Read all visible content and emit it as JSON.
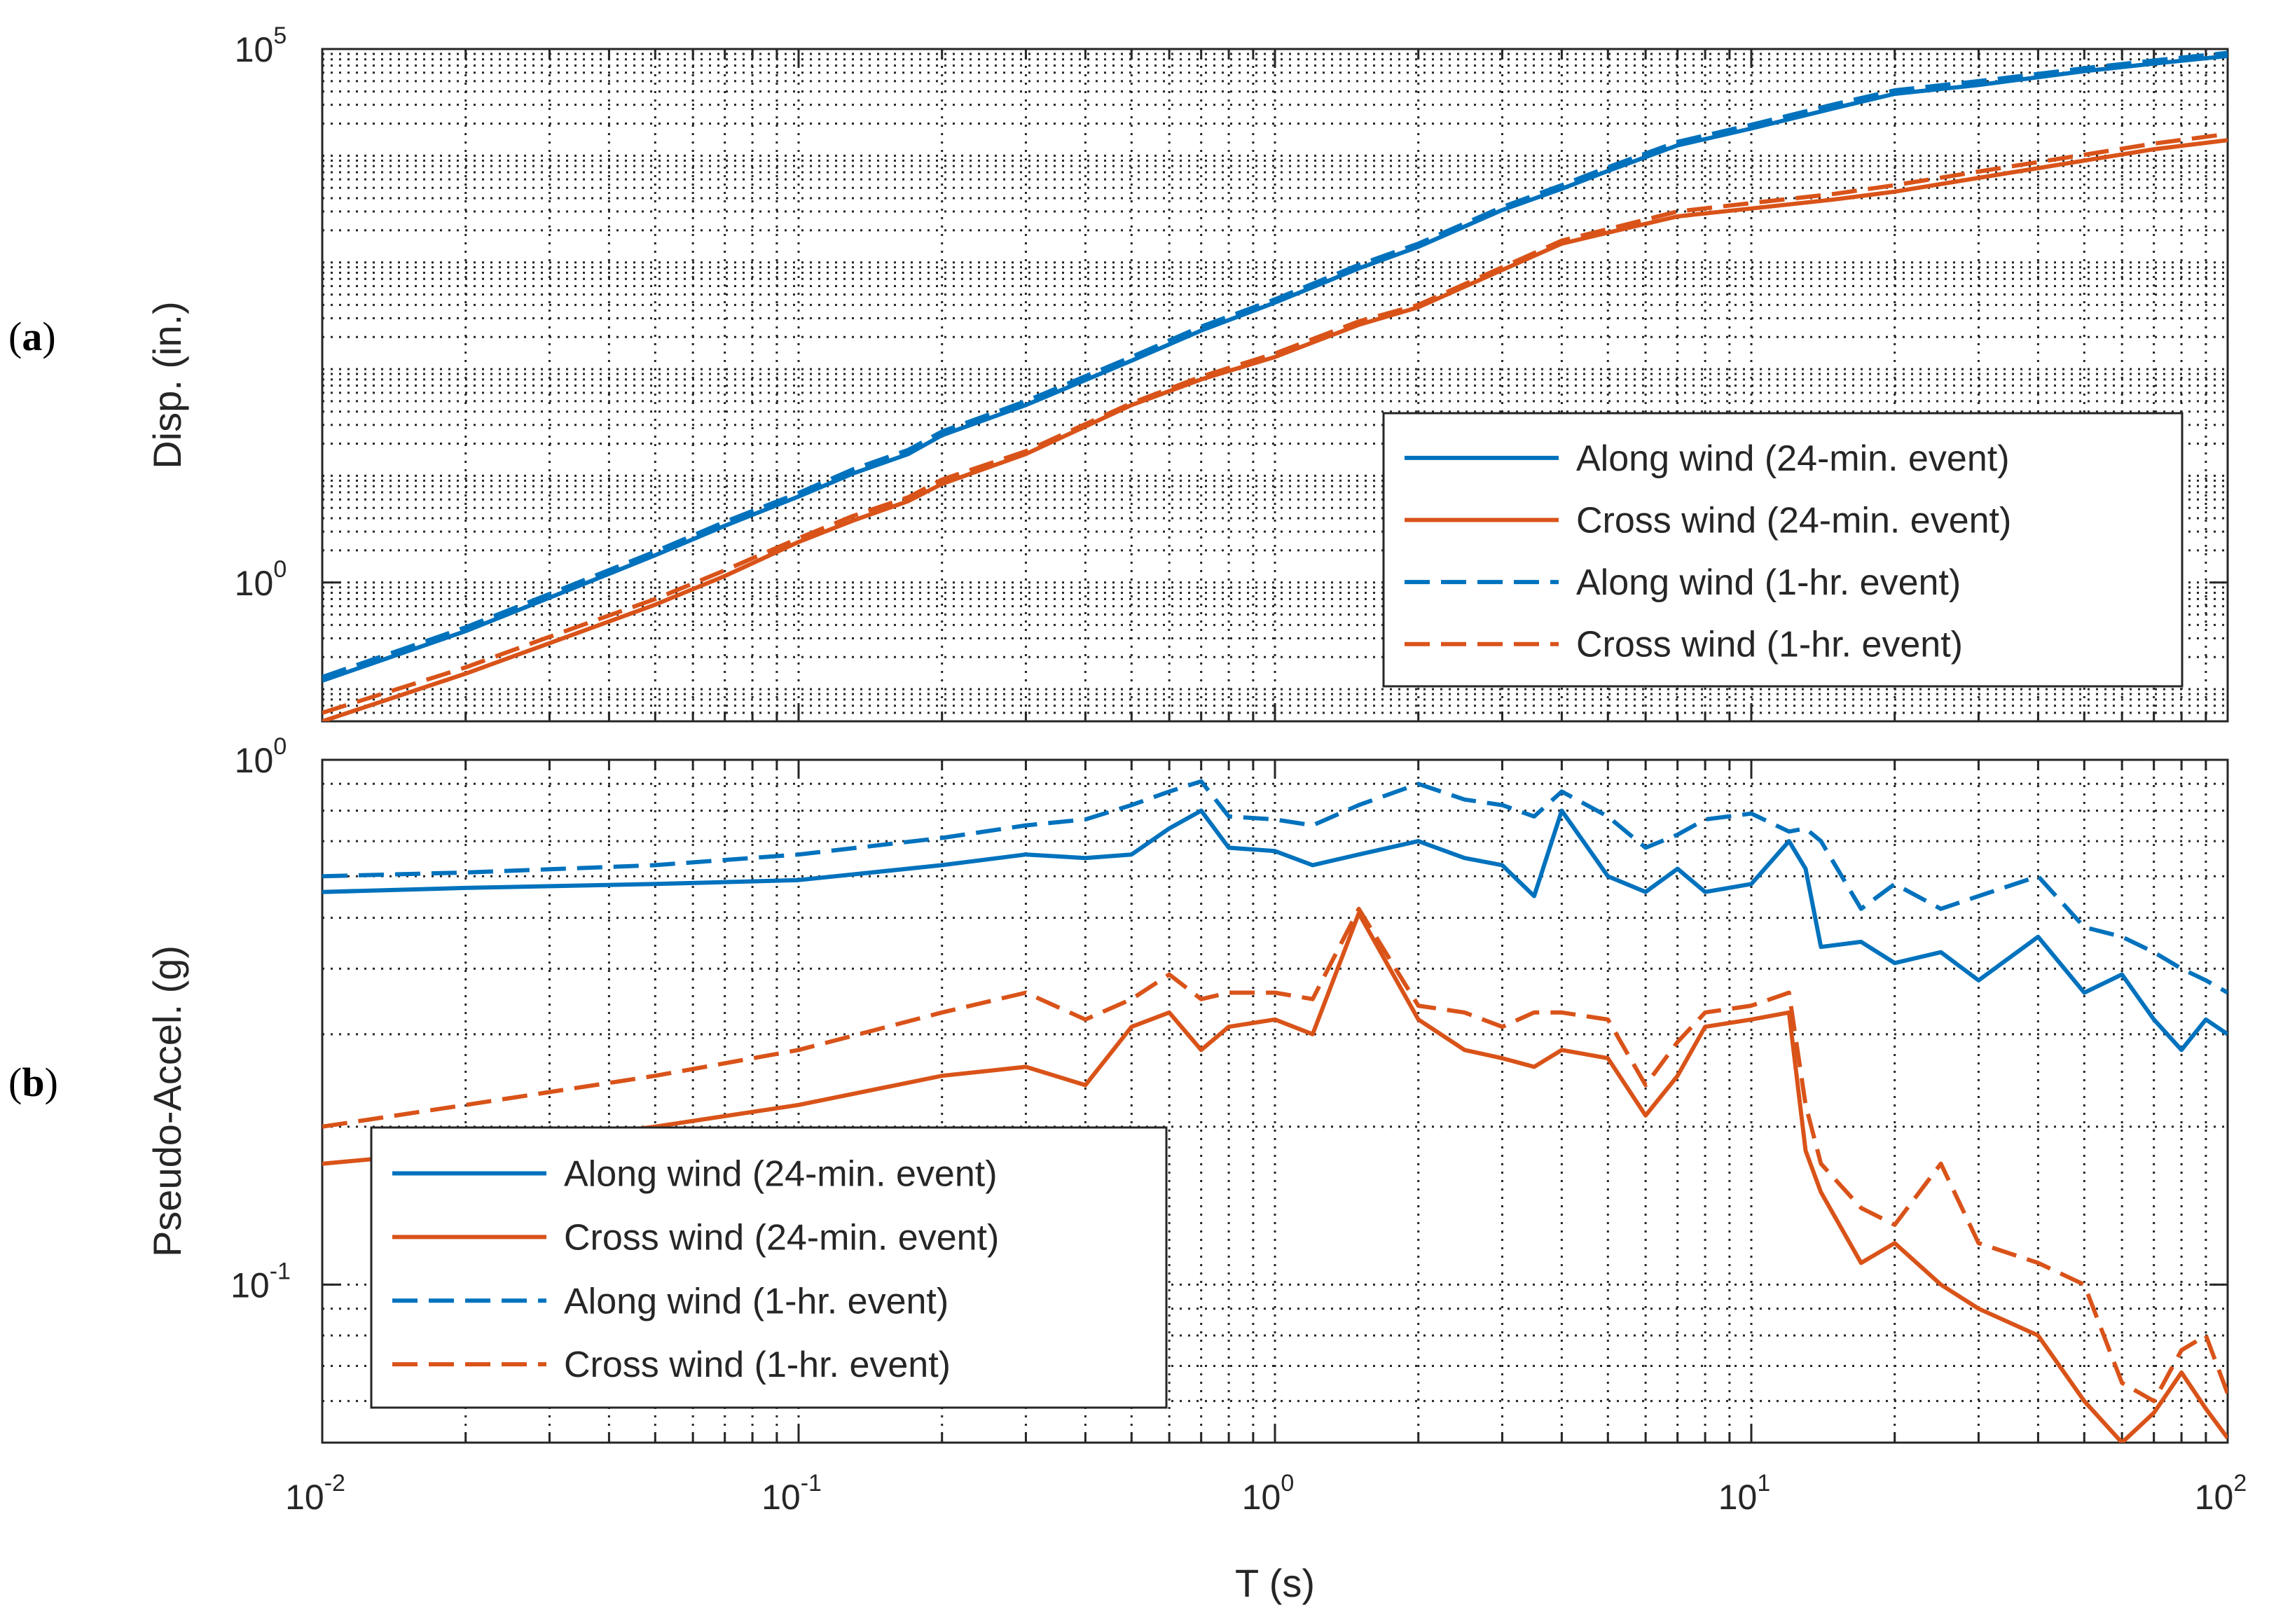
{
  "chart_data": [
    {
      "panel_label": "a",
      "type": "line",
      "xscale": "log",
      "yscale": "log",
      "xlim": [
        0.01,
        100
      ],
      "ylim": [
        0.05,
        100000
      ],
      "xticks": [
        {
          "base": "10",
          "exp": "-2"
        },
        {
          "base": "10",
          "exp": "-1"
        },
        {
          "base": "10",
          "exp": "0"
        },
        {
          "base": "10",
          "exp": "1"
        },
        {
          "base": "10",
          "exp": "2"
        }
      ],
      "xtick_values": [
        0.01,
        0.1,
        1,
        10,
        100
      ],
      "yticks": [
        {
          "base": "10",
          "exp": "0"
        },
        {
          "base": "10",
          "exp": "5"
        }
      ],
      "ytick_values": [
        1,
        100000
      ],
      "ylabel": "Disp. (in.)",
      "xlabel": "",
      "grid": true,
      "legend_location": "lower-right",
      "series": [
        {
          "name": "Along wind (24-min. event)",
          "color": "#0072BD",
          "style": "solid",
          "x": [
            0.01,
            0.02,
            0.03,
            0.05,
            0.07,
            0.1,
            0.13,
            0.17,
            0.2,
            0.3,
            0.5,
            0.7,
            1,
            1.5,
            2,
            3,
            4,
            5,
            7,
            10,
            15,
            20,
            30,
            50,
            70,
            100
          ],
          "y": [
            0.12,
            0.35,
            0.72,
            1.8,
            3.4,
            6.4,
            10.5,
            16,
            24,
            46,
            120,
            230,
            420,
            880,
            1400,
            3100,
            4900,
            7200,
            12500,
            18000,
            28000,
            38000,
            46000,
            62000,
            73000,
            86000
          ]
        },
        {
          "name": "Cross wind (24-min. event)",
          "color": "#D95319",
          "style": "solid",
          "x": [
            0.01,
            0.02,
            0.03,
            0.05,
            0.07,
            0.1,
            0.13,
            0.17,
            0.2,
            0.3,
            0.5,
            0.7,
            1,
            1.5,
            2,
            3,
            4,
            5,
            7,
            10,
            15,
            20,
            30,
            50,
            70,
            100
          ],
          "y": [
            0.05,
            0.14,
            0.27,
            0.62,
            1.15,
            2.4,
            3.8,
            5.8,
            8.4,
            16,
            46,
            80,
            130,
            260,
            380,
            850,
            1500,
            1900,
            2700,
            3200,
            3900,
            4600,
            6200,
            9000,
            11500,
            14000
          ]
        },
        {
          "name": "Along wind (1-hr. event)",
          "color": "#0072BD",
          "style": "dashed",
          "x": [
            0.01,
            0.02,
            0.03,
            0.05,
            0.07,
            0.1,
            0.13,
            0.17,
            0.2,
            0.3,
            0.5,
            0.7,
            1,
            1.5,
            2,
            3,
            4,
            5,
            7,
            10,
            15,
            20,
            30,
            50,
            70,
            100
          ],
          "y": [
            0.13,
            0.38,
            0.78,
            1.95,
            3.7,
            6.9,
            11.5,
            17.5,
            26,
            50,
            130,
            250,
            450,
            950,
            1500,
            3300,
            5300,
            7800,
            13500,
            19500,
            30500,
            41000,
            50000,
            66000,
            78000,
            92000
          ]
        },
        {
          "name": "Cross wind (1-hr. event)",
          "color": "#D95319",
          "style": "dashed",
          "x": [
            0.01,
            0.02,
            0.03,
            0.05,
            0.07,
            0.1,
            0.13,
            0.17,
            0.2,
            0.3,
            0.5,
            0.7,
            1,
            1.5,
            2,
            3,
            4,
            5,
            7,
            10,
            15,
            20,
            30,
            50,
            70,
            100
          ],
          "y": [
            0.06,
            0.16,
            0.31,
            0.7,
            1.3,
            2.6,
            4.2,
            6.3,
            9.2,
            17,
            48,
            85,
            140,
            280,
            400,
            900,
            1600,
            2050,
            3000,
            3600,
            4400,
            5300,
            7100,
            10200,
            13000,
            16000
          ]
        }
      ]
    },
    {
      "panel_label": "b",
      "type": "line",
      "xscale": "log",
      "yscale": "log",
      "xlim": [
        0.01,
        100
      ],
      "ylim": [
        0.05,
        1
      ],
      "xticks": [
        {
          "base": "10",
          "exp": "-2"
        },
        {
          "base": "10",
          "exp": "-1"
        },
        {
          "base": "10",
          "exp": "0"
        },
        {
          "base": "10",
          "exp": "1"
        },
        {
          "base": "10",
          "exp": "2"
        }
      ],
      "xtick_values": [
        0.01,
        0.1,
        1,
        10,
        100
      ],
      "yticks": [
        {
          "base": "10",
          "exp": "-1"
        },
        {
          "base": "10",
          "exp": "0"
        }
      ],
      "ytick_values": [
        0.1,
        1
      ],
      "ylabel": "Pseudo-Accel. (g)",
      "xlabel": "T (s)",
      "grid": true,
      "legend_location": "lower-left",
      "series": [
        {
          "name": "Along wind (24-min. event)",
          "color": "#0072BD",
          "style": "solid",
          "x": [
            0.01,
            0.02,
            0.05,
            0.1,
            0.2,
            0.3,
            0.4,
            0.5,
            0.6,
            0.7,
            0.8,
            1,
            1.2,
            1.5,
            2,
            2.5,
            3,
            3.5,
            4,
            5,
            6,
            7,
            8,
            10,
            12,
            13,
            14,
            17,
            20,
            25,
            30,
            40,
            50,
            60,
            70,
            80,
            90,
            100
          ],
          "y": [
            0.56,
            0.57,
            0.58,
            0.59,
            0.63,
            0.66,
            0.65,
            0.66,
            0.74,
            0.8,
            0.68,
            0.67,
            0.63,
            0.66,
            0.7,
            0.65,
            0.63,
            0.55,
            0.8,
            0.6,
            0.56,
            0.62,
            0.56,
            0.58,
            0.7,
            0.62,
            0.44,
            0.45,
            0.41,
            0.43,
            0.38,
            0.46,
            0.36,
            0.39,
            0.32,
            0.28,
            0.32,
            0.3
          ]
        },
        {
          "name": "Cross wind (24-min. event)",
          "color": "#D95319",
          "style": "solid",
          "x": [
            0.01,
            0.02,
            0.05,
            0.1,
            0.2,
            0.3,
            0.4,
            0.5,
            0.6,
            0.7,
            0.8,
            1,
            1.2,
            1.5,
            2,
            2.5,
            3,
            3.5,
            4,
            5,
            6,
            7,
            8,
            10,
            12,
            13,
            14,
            17,
            20,
            25,
            30,
            40,
            50,
            60,
            70,
            80,
            90,
            100
          ],
          "y": [
            0.17,
            0.18,
            0.2,
            0.22,
            0.25,
            0.26,
            0.24,
            0.31,
            0.33,
            0.28,
            0.31,
            0.32,
            0.3,
            0.51,
            0.32,
            0.28,
            0.27,
            0.26,
            0.28,
            0.27,
            0.21,
            0.25,
            0.31,
            0.32,
            0.33,
            0.18,
            0.15,
            0.11,
            0.12,
            0.1,
            0.09,
            0.08,
            0.06,
            0.05,
            0.057,
            0.068,
            0.058,
            0.051
          ]
        },
        {
          "name": "Along wind (1-hr. event)",
          "color": "#0072BD",
          "style": "dashed",
          "x": [
            0.01,
            0.02,
            0.05,
            0.1,
            0.2,
            0.3,
            0.4,
            0.5,
            0.6,
            0.7,
            0.8,
            1,
            1.2,
            1.5,
            2,
            2.5,
            3,
            3.5,
            4,
            5,
            6,
            7,
            8,
            10,
            12,
            13,
            14,
            17,
            20,
            25,
            30,
            40,
            50,
            60,
            70,
            80,
            90,
            100
          ],
          "y": [
            0.6,
            0.61,
            0.63,
            0.66,
            0.71,
            0.75,
            0.77,
            0.82,
            0.87,
            0.91,
            0.78,
            0.77,
            0.75,
            0.82,
            0.9,
            0.84,
            0.82,
            0.78,
            0.87,
            0.78,
            0.68,
            0.72,
            0.77,
            0.79,
            0.73,
            0.74,
            0.7,
            0.52,
            0.58,
            0.52,
            0.55,
            0.6,
            0.48,
            0.46,
            0.43,
            0.4,
            0.38,
            0.36
          ]
        },
        {
          "name": "Cross wind (1-hr. event)",
          "color": "#D95319",
          "style": "dashed",
          "x": [
            0.01,
            0.02,
            0.05,
            0.1,
            0.2,
            0.3,
            0.4,
            0.5,
            0.6,
            0.7,
            0.8,
            1,
            1.2,
            1.5,
            2,
            2.5,
            3,
            3.5,
            4,
            5,
            6,
            7,
            8,
            10,
            12,
            13,
            14,
            17,
            20,
            25,
            30,
            40,
            50,
            60,
            70,
            80,
            90,
            100
          ],
          "y": [
            0.2,
            0.22,
            0.25,
            0.28,
            0.33,
            0.36,
            0.32,
            0.35,
            0.39,
            0.35,
            0.36,
            0.36,
            0.35,
            0.52,
            0.34,
            0.33,
            0.31,
            0.33,
            0.33,
            0.32,
            0.24,
            0.29,
            0.33,
            0.34,
            0.36,
            0.22,
            0.17,
            0.14,
            0.13,
            0.17,
            0.12,
            0.11,
            0.1,
            0.065,
            0.06,
            0.075,
            0.08,
            0.062
          ]
        }
      ]
    }
  ]
}
